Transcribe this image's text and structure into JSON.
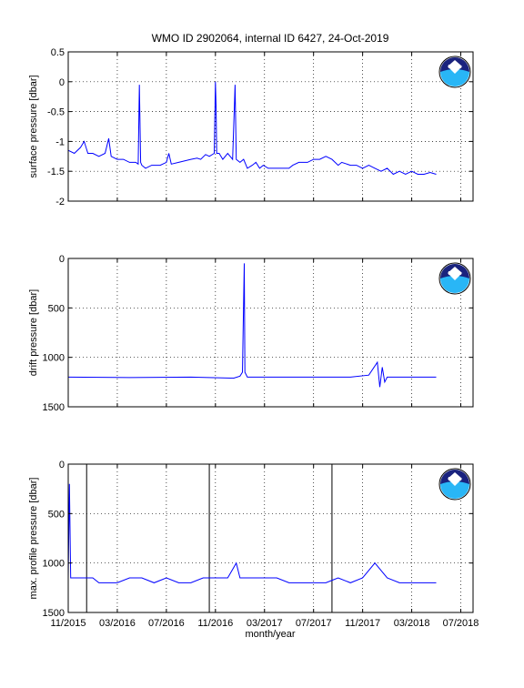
{
  "figure": {
    "title": "WMO ID 2902064, internal ID 6427, 24-Oct-2019",
    "xlabel": "month/year",
    "x_ticks": [
      "11/2015",
      "03/2016",
      "07/2016",
      "11/2016",
      "03/2017",
      "07/2017",
      "11/2017",
      "03/2018",
      "07/2018"
    ]
  },
  "logo": {
    "text": "NOAA"
  },
  "colors": {
    "line": "#0000ff",
    "spike": "#000000",
    "grid": "#000000"
  },
  "chart_data": [
    {
      "type": "line",
      "ylabel": "surface pressure [dbar]",
      "ylim": [
        -2,
        0.5
      ],
      "yticks": [
        0.5,
        0,
        -0.5,
        -1,
        -1.5,
        -2
      ],
      "ytick_labels": [
        "0.5",
        "0",
        "-0.5",
        "-1",
        "-1.5",
        "-2"
      ],
      "x_unit": "months since 11/2015",
      "series": [
        {
          "values": [
            [
              0,
              -1.15
            ],
            [
              0.5,
              -1.2
            ],
            [
              1,
              -1.1
            ],
            [
              1.3,
              -1.0
            ],
            [
              1.6,
              -1.2
            ],
            [
              2,
              -1.2
            ],
            [
              2.5,
              -1.25
            ],
            [
              3,
              -1.2
            ],
            [
              3.3,
              -0.95
            ],
            [
              3.5,
              -1.25
            ],
            [
              4,
              -1.3
            ],
            [
              4.5,
              -1.3
            ],
            [
              5,
              -1.35
            ],
            [
              5.5,
              -1.35
            ],
            [
              5.7,
              -1.38
            ],
            [
              5.8,
              -0.05
            ],
            [
              5.9,
              -1.35
            ],
            [
              6,
              -1.4
            ],
            [
              6.3,
              -1.45
            ],
            [
              6.8,
              -1.4
            ],
            [
              7.5,
              -1.4
            ],
            [
              8,
              -1.35
            ],
            [
              8.2,
              -1.2
            ],
            [
              8.4,
              -1.38
            ],
            [
              9,
              -1.35
            ],
            [
              10,
              -1.3
            ],
            [
              10.5,
              -1.28
            ],
            [
              10.8,
              -1.3
            ],
            [
              11.2,
              -1.22
            ],
            [
              11.5,
              -1.25
            ],
            [
              11.9,
              -1.2
            ],
            [
              12,
              0.0
            ],
            [
              12.05,
              -0.4
            ],
            [
              12.1,
              -1.2
            ],
            [
              12.3,
              -1.2
            ],
            [
              12.6,
              -1.3
            ],
            [
              13,
              -1.2
            ],
            [
              13.4,
              -1.3
            ],
            [
              13.6,
              -0.05
            ],
            [
              13.7,
              -1.3
            ],
            [
              14.0,
              -1.35
            ],
            [
              14.3,
              -1.3
            ],
            [
              14.6,
              -1.45
            ],
            [
              15,
              -1.4
            ],
            [
              15.3,
              -1.35
            ],
            [
              15.6,
              -1.45
            ],
            [
              15.9,
              -1.4
            ],
            [
              16.3,
              -1.45
            ],
            [
              16.6,
              -1.45
            ],
            [
              18,
              -1.45
            ],
            [
              18.3,
              -1.4
            ],
            [
              18.8,
              -1.35
            ],
            [
              19.5,
              -1.35
            ],
            [
              20,
              -1.3
            ],
            [
              20.5,
              -1.3
            ],
            [
              21,
              -1.25
            ],
            [
              21.5,
              -1.3
            ],
            [
              22,
              -1.4
            ],
            [
              22.3,
              -1.35
            ],
            [
              23,
              -1.4
            ],
            [
              23.5,
              -1.4
            ],
            [
              24,
              -1.45
            ],
            [
              24.5,
              -1.4
            ],
            [
              25,
              -1.45
            ],
            [
              25.5,
              -1.5
            ],
            [
              26,
              -1.45
            ],
            [
              26.5,
              -1.55
            ],
            [
              27,
              -1.5
            ],
            [
              27.5,
              -1.55
            ],
            [
              28,
              -1.5
            ],
            [
              28.5,
              -1.55
            ],
            [
              29,
              -1.55
            ],
            [
              29.5,
              -1.52
            ],
            [
              30,
              -1.55
            ]
          ]
        }
      ]
    },
    {
      "type": "line",
      "ylabel": "drift pressure [dbar]",
      "ylim": [
        0,
        1500
      ],
      "y_reversed": true,
      "yticks": [
        0,
        500,
        1000,
        1500
      ],
      "ytick_labels": [
        "0",
        "500",
        "1000",
        "1500"
      ],
      "series": [
        {
          "values": [
            [
              0,
              1200
            ],
            [
              5,
              1205
            ],
            [
              10,
              1200
            ],
            [
              13.5,
              1210
            ],
            [
              14.0,
              1190
            ],
            [
              14.2,
              1150
            ],
            [
              14.35,
              50
            ],
            [
              14.4,
              1150
            ],
            [
              14.6,
              1200
            ],
            [
              16.5,
              1200
            ],
            [
              18.5,
              1200
            ],
            [
              20,
              1200
            ],
            [
              23,
              1200
            ],
            [
              24.5,
              1180
            ],
            [
              25.2,
              1050
            ],
            [
              25.4,
              1300
            ],
            [
              25.6,
              1100
            ],
            [
              25.8,
              1250
            ],
            [
              26,
              1200
            ],
            [
              27,
              1200
            ],
            [
              29,
              1200
            ],
            [
              30,
              1200
            ]
          ]
        }
      ]
    },
    {
      "type": "line",
      "ylabel": "max. profile pressure [dbar]",
      "ylim": [
        0,
        1500
      ],
      "y_reversed": true,
      "yticks": [
        0,
        500,
        1000,
        1500
      ],
      "ytick_labels": [
        "0",
        "500",
        "1000",
        "1500"
      ],
      "vlines_x": [
        1.5,
        11.5,
        21.5
      ],
      "series": [
        {
          "values": [
            [
              0,
              1150
            ],
            [
              0.1,
              200
            ],
            [
              0.2,
              1150
            ],
            [
              0.5,
              1150
            ],
            [
              1,
              1150
            ],
            [
              1.5,
              1150
            ],
            [
              2,
              1150
            ],
            [
              2.5,
              1200
            ],
            [
              4,
              1200
            ],
            [
              5,
              1150
            ],
            [
              6,
              1150
            ],
            [
              7,
              1200
            ],
            [
              8,
              1150
            ],
            [
              9,
              1200
            ],
            [
              10,
              1200
            ],
            [
              11,
              1150
            ],
            [
              12,
              1150
            ],
            [
              13,
              1150
            ],
            [
              13.7,
              1000
            ],
            [
              14,
              1150
            ],
            [
              15,
              1150
            ],
            [
              16,
              1150
            ],
            [
              17,
              1150
            ],
            [
              18,
              1200
            ],
            [
              19,
              1200
            ],
            [
              20,
              1200
            ],
            [
              21,
              1200
            ],
            [
              22,
              1150
            ],
            [
              23,
              1200
            ],
            [
              24,
              1150
            ],
            [
              25,
              1000
            ],
            [
              26,
              1150
            ],
            [
              27,
              1200
            ],
            [
              28,
              1200
            ],
            [
              29,
              1200
            ],
            [
              30,
              1200
            ]
          ]
        }
      ]
    }
  ]
}
